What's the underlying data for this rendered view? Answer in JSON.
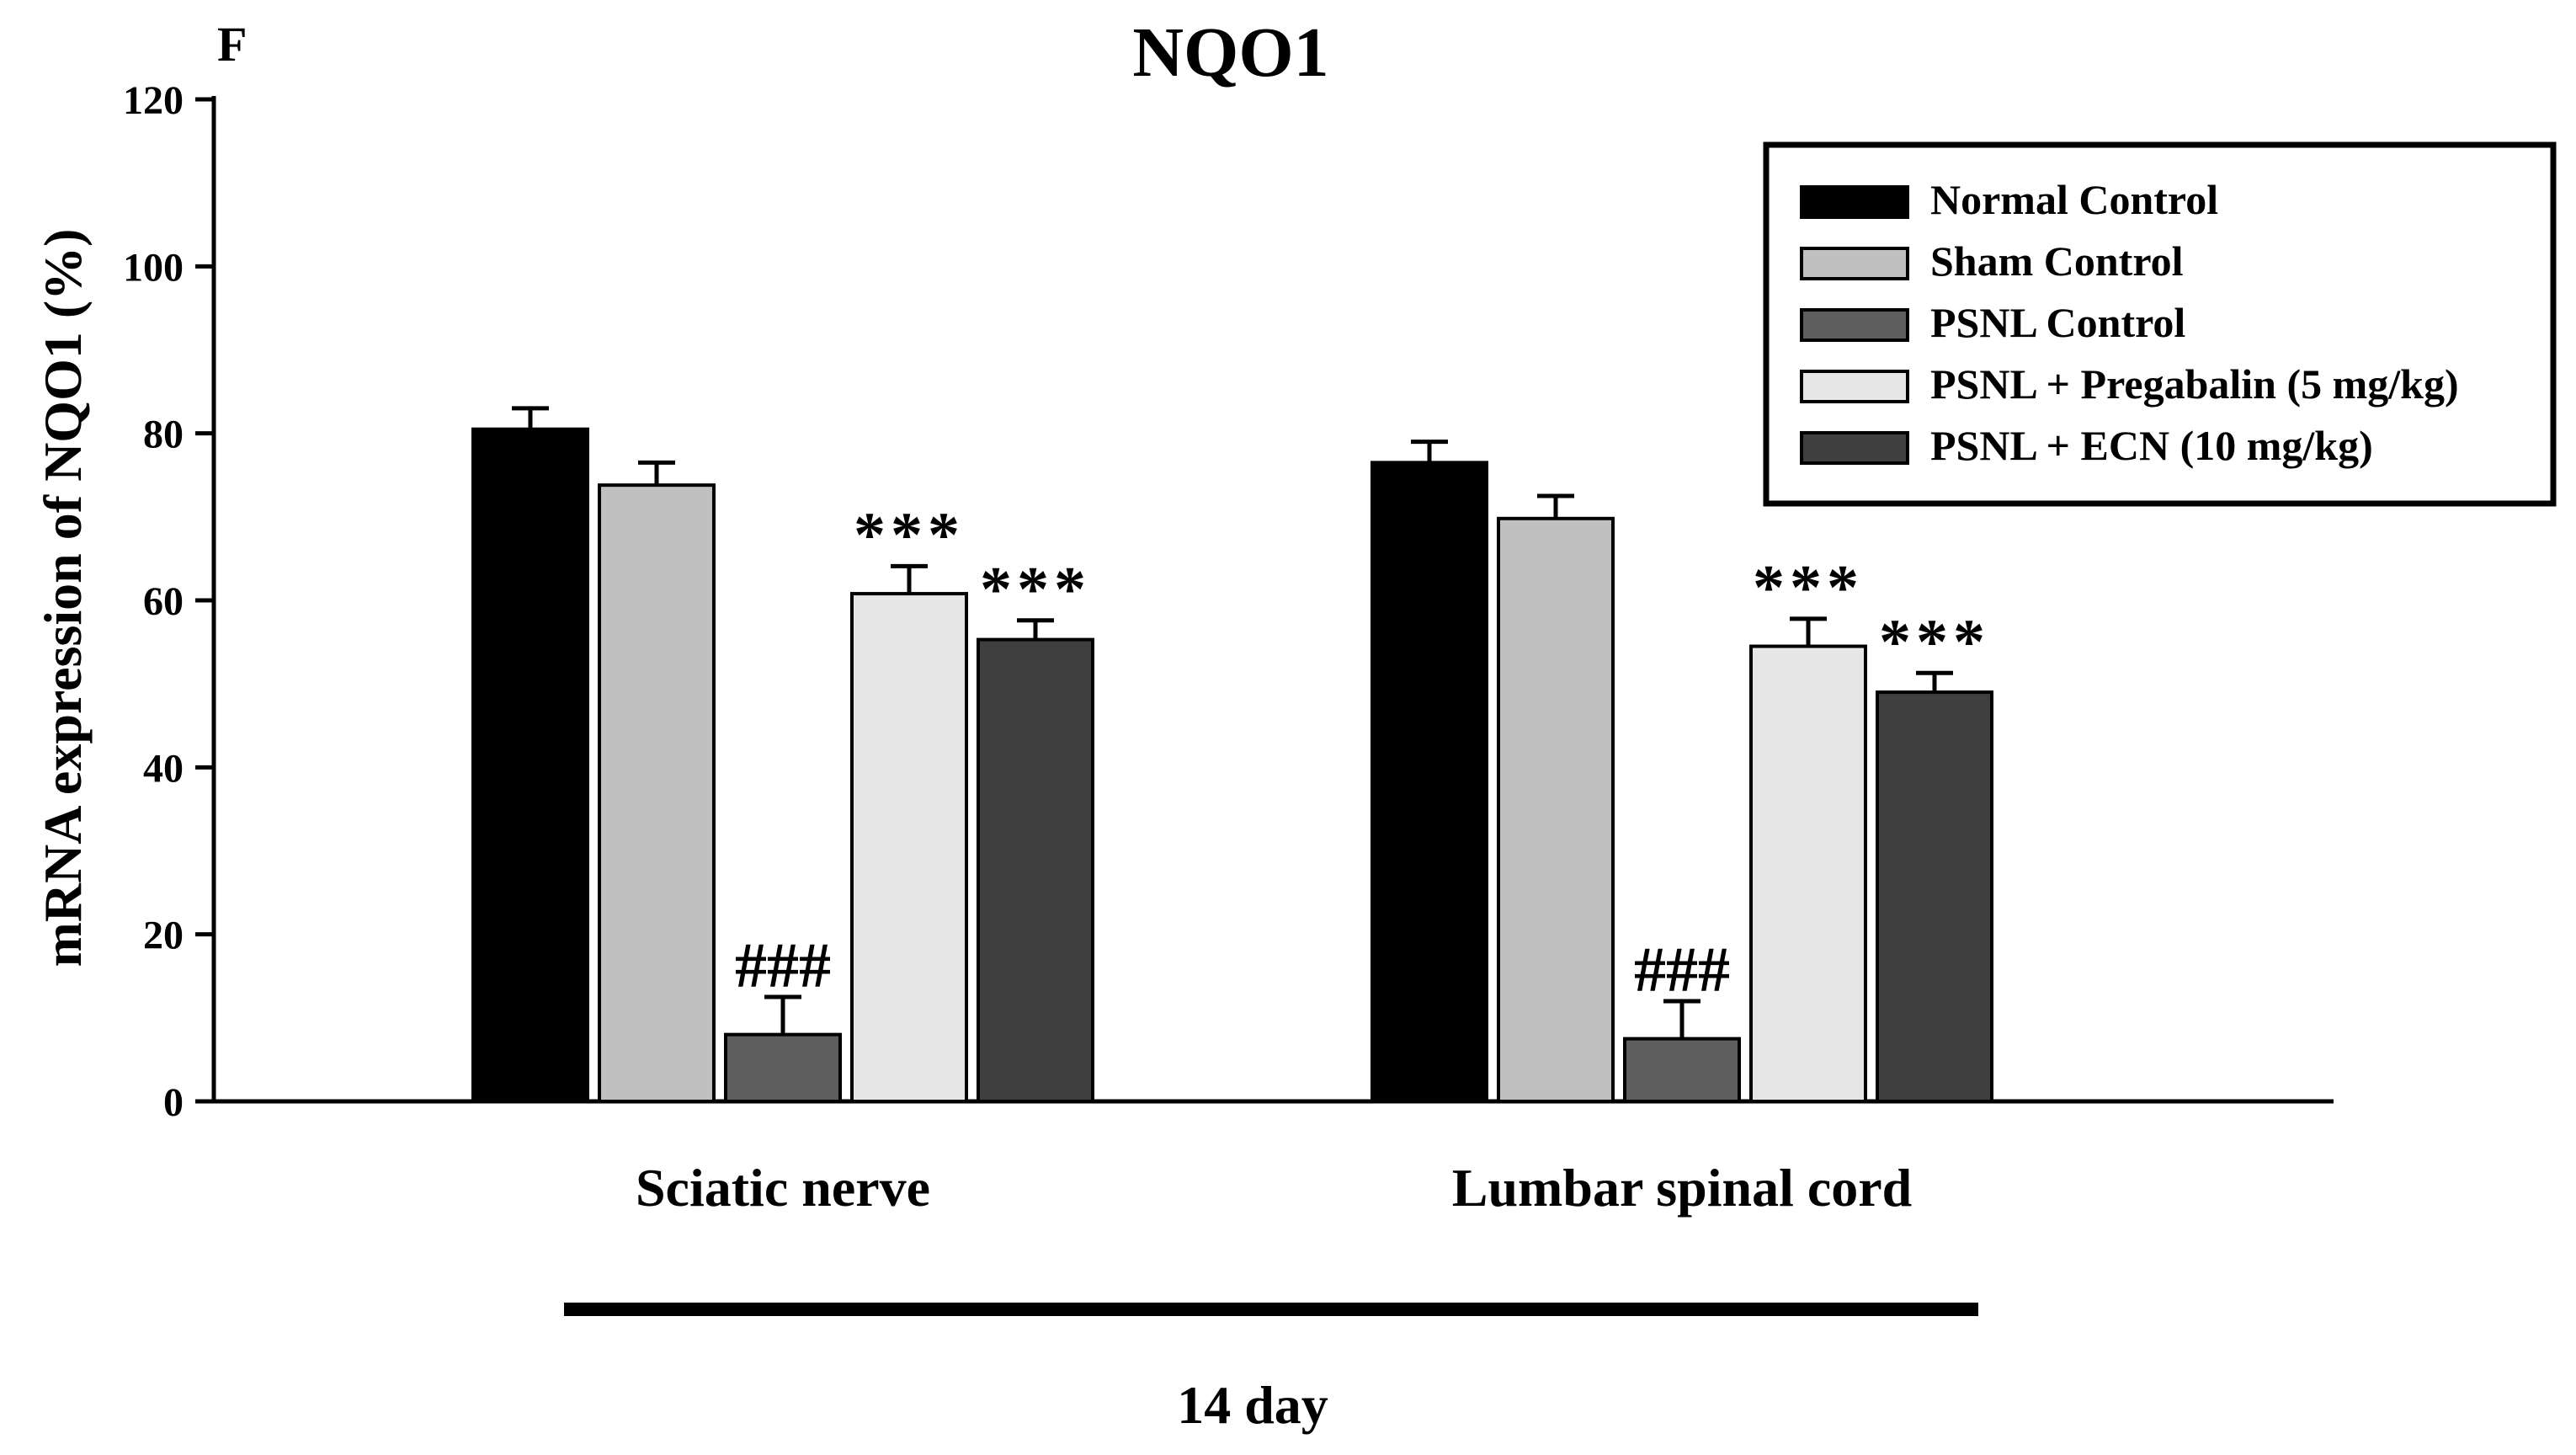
{
  "panel_label": "F",
  "colors": {
    "normal_control": "#000000",
    "sham_control": "#c0c0c0",
    "psnl_control": "#5e5e5e",
    "psnl_pregabalin": "#e6e6e6",
    "psnl_ecn": "#3f3f3f"
  },
  "chart_data": {
    "type": "bar",
    "title": "NQO1",
    "ylabel": "mRNA expression of NQO1 (%)",
    "xlabel": "14 day",
    "ylim": [
      0,
      120
    ],
    "yticks": [
      0,
      20,
      40,
      60,
      80,
      100,
      120
    ],
    "categories": [
      "Sciatic nerve",
      "Lumbar spinal cord"
    ],
    "series": [
      {
        "name": "Normal Control",
        "color_key": "normal_control",
        "values": [
          80.5,
          76.5
        ],
        "errors": [
          2.5,
          2.5
        ],
        "annotations": [
          "",
          ""
        ]
      },
      {
        "name": "Sham Control",
        "color_key": "sham_control",
        "values": [
          73.8,
          69.8
        ],
        "errors": [
          2.7,
          2.7
        ],
        "annotations": [
          "",
          ""
        ]
      },
      {
        "name": "PSNL Control",
        "color_key": "psnl_control",
        "values": [
          8.0,
          7.5
        ],
        "errors": [
          4.5,
          4.5
        ],
        "annotations": [
          "###",
          "###"
        ]
      },
      {
        "name": "PSNL + Pregabalin (5 mg/kg)",
        "color_key": "psnl_pregabalin",
        "values": [
          60.8,
          54.5
        ],
        "errors": [
          3.3,
          3.3
        ],
        "annotations": [
          "***",
          "***"
        ]
      },
      {
        "name": "PSNL + ECN (10 mg/kg)",
        "color_key": "psnl_ecn",
        "values": [
          55.3,
          49.0
        ],
        "errors": [
          2.3,
          2.3
        ],
        "annotations": [
          "***",
          "***"
        ]
      }
    ],
    "legend_position": "top-right"
  }
}
